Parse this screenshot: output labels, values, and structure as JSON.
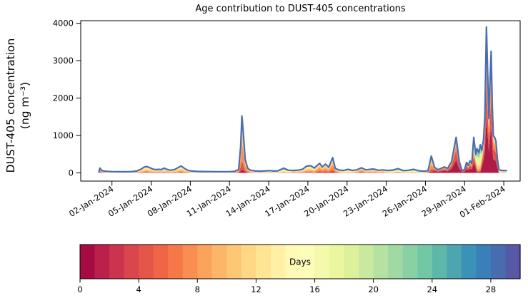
{
  "figure": {
    "background": "#ffffff",
    "axes_color": "#000000",
    "text_color": "#000000"
  },
  "chart_data": {
    "type": "area",
    "title": "Age contribution to DUST-405 concentrations",
    "ylabel_line1": "DUST-405 concentration",
    "ylabel_line2": "(ng m⁻³)",
    "xlabel": "",
    "yticks": [
      0,
      1000,
      2000,
      3000,
      4000
    ],
    "ylim": [
      0,
      4250
    ],
    "x_axis": {
      "tick_labels": [
        "02-Jan-2024",
        "05-Jan-2024",
        "08-Jan-2024",
        "11-Jan-2024",
        "14-Jan-2024",
        "17-Jan-2024",
        "20-Jan-2024",
        "23-Jan-2024",
        "26-Jan-2024",
        "29-Jan-2024",
        "01-Feb-2024"
      ],
      "tick_day_offsets": [
        1,
        4,
        7,
        10,
        13,
        16,
        19,
        22,
        25,
        28,
        31
      ],
      "day_offset_reference": "0 = 01-Jan-2024 00:00",
      "xlim_day_offsets": [
        -1.4,
        32.3
      ]
    },
    "stacking_note": "total concentration decomposed into age bands, youngest (red) at bottom to oldest (blue) at top, Spectral colormap",
    "total_line_color": "#4a6db1",
    "bands": [
      {
        "age_days": "0-2",
        "color": "#b01a47"
      },
      {
        "age_days": "2-5",
        "color": "#e05749"
      },
      {
        "age_days": "5-9",
        "color": "#f99153"
      },
      {
        "age_days": "9-13",
        "color": "#fdc878"
      },
      {
        "age_days": "13-17",
        "color": "#fef0a6"
      },
      {
        "age_days": "17-21",
        "color": "#e2f49c"
      },
      {
        "age_days": "21-25",
        "color": "#94d4a4"
      },
      {
        "age_days": "25-30",
        "color": "#4a9bb4"
      }
    ],
    "mix_names": [
      "aged",
      "yellow",
      "orange",
      "green",
      "fresh",
      "fresh2",
      "mega"
    ],
    "mix_profiles": {
      "aged": [
        0.02,
        0.04,
        0.09,
        0.17,
        0.25,
        0.18,
        0.11,
        0.14
      ],
      "yellow": [
        0.03,
        0.08,
        0.18,
        0.3,
        0.24,
        0.08,
        0.04,
        0.05
      ],
      "orange": [
        0.06,
        0.15,
        0.31,
        0.26,
        0.11,
        0.04,
        0.03,
        0.04
      ],
      "green": [
        0.03,
        0.05,
        0.09,
        0.13,
        0.19,
        0.22,
        0.17,
        0.12
      ],
      "fresh": [
        0.36,
        0.28,
        0.16,
        0.08,
        0.04,
        0.03,
        0.02,
        0.03
      ],
      "fresh2": [
        0.28,
        0.18,
        0.12,
        0.08,
        0.08,
        0.09,
        0.08,
        0.09
      ],
      "mega": [
        0.38,
        0.22,
        0.14,
        0.07,
        0.04,
        0.03,
        0.03,
        0.09
      ]
    },
    "points_schema": [
      "day_offset",
      "total_ng_m3",
      "mix_index"
    ],
    "points": [
      [
        0.0,
        25,
        2
      ],
      [
        0.08,
        130,
        2
      ],
      [
        0.2,
        70,
        2
      ],
      [
        0.35,
        50,
        1
      ],
      [
        0.6,
        42,
        0
      ],
      [
        1.0,
        35,
        0
      ],
      [
        1.5,
        32,
        0
      ],
      [
        2.0,
        30,
        0
      ],
      [
        2.5,
        35,
        0
      ],
      [
        2.9,
        50,
        1
      ],
      [
        3.2,
        95,
        1
      ],
      [
        3.45,
        150,
        1
      ],
      [
        3.64,
        172,
        1
      ],
      [
        3.9,
        140,
        1
      ],
      [
        4.15,
        100,
        1
      ],
      [
        4.4,
        85,
        1
      ],
      [
        4.56,
        95,
        1
      ],
      [
        4.75,
        85,
        1
      ],
      [
        5.0,
        125,
        1
      ],
      [
        5.25,
        90,
        1
      ],
      [
        5.5,
        70,
        1
      ],
      [
        5.8,
        90,
        1
      ],
      [
        6.05,
        140,
        1
      ],
      [
        6.3,
        185,
        1
      ],
      [
        6.55,
        120,
        1
      ],
      [
        6.8,
        70,
        1
      ],
      [
        7.1,
        50,
        0
      ],
      [
        7.5,
        40,
        0
      ],
      [
        8.0,
        36,
        0
      ],
      [
        8.5,
        34,
        0
      ],
      [
        9.0,
        33,
        0
      ],
      [
        9.5,
        32,
        0
      ],
      [
        10.0,
        33,
        0
      ],
      [
        10.4,
        40,
        1
      ],
      [
        10.7,
        90,
        2
      ],
      [
        10.85,
        700,
        2
      ],
      [
        10.95,
        1520,
        2
      ],
      [
        11.05,
        1100,
        2
      ],
      [
        11.2,
        350,
        2
      ],
      [
        11.4,
        120,
        2
      ],
      [
        11.6,
        70,
        1
      ],
      [
        12.0,
        50,
        0
      ],
      [
        12.4,
        45,
        0
      ],
      [
        12.8,
        55,
        0
      ],
      [
        13.1,
        60,
        0
      ],
      [
        13.4,
        50,
        0
      ],
      [
        13.7,
        55,
        0
      ],
      [
        14.15,
        125,
        0
      ],
      [
        14.5,
        70,
        0
      ],
      [
        14.9,
        65,
        1
      ],
      [
        15.3,
        75,
        1
      ],
      [
        15.6,
        100,
        1
      ],
      [
        15.9,
        180,
        1
      ],
      [
        16.2,
        195,
        1
      ],
      [
        16.5,
        130,
        1
      ],
      [
        16.9,
        255,
        2
      ],
      [
        17.1,
        160,
        2
      ],
      [
        17.35,
        235,
        2
      ],
      [
        17.6,
        150,
        2
      ],
      [
        17.9,
        410,
        2
      ],
      [
        18.1,
        120,
        2
      ],
      [
        18.4,
        75,
        1
      ],
      [
        18.75,
        65,
        0
      ],
      [
        19.07,
        95,
        0
      ],
      [
        19.4,
        65,
        0
      ],
      [
        19.75,
        80,
        1
      ],
      [
        20.1,
        135,
        2
      ],
      [
        20.45,
        80,
        1
      ],
      [
        21.0,
        105,
        1
      ],
      [
        21.4,
        70,
        1
      ],
      [
        21.75,
        80,
        1
      ],
      [
        22.1,
        65,
        0
      ],
      [
        22.5,
        75,
        3
      ],
      [
        22.9,
        115,
        3
      ],
      [
        23.3,
        60,
        3
      ],
      [
        23.7,
        70,
        3
      ],
      [
        24.1,
        95,
        3
      ],
      [
        24.5,
        55,
        0
      ],
      [
        24.9,
        45,
        0
      ],
      [
        25.2,
        60,
        2
      ],
      [
        25.45,
        450,
        2
      ],
      [
        25.7,
        150,
        4
      ],
      [
        25.95,
        85,
        4
      ],
      [
        26.2,
        120,
        4
      ],
      [
        26.45,
        160,
        4
      ],
      [
        26.7,
        120,
        4
      ],
      [
        27.0,
        300,
        4
      ],
      [
        27.35,
        950,
        4
      ],
      [
        27.6,
        300,
        4
      ],
      [
        27.8,
        60,
        4
      ],
      [
        28.0,
        90,
        4
      ],
      [
        28.15,
        280,
        4
      ],
      [
        28.28,
        200,
        4
      ],
      [
        28.42,
        320,
        4
      ],
      [
        28.55,
        250,
        4
      ],
      [
        28.7,
        950,
        5
      ],
      [
        28.85,
        500,
        5
      ],
      [
        28.95,
        650,
        3
      ],
      [
        29.1,
        550,
        3
      ],
      [
        29.2,
        750,
        3
      ],
      [
        29.32,
        600,
        5
      ],
      [
        29.45,
        900,
        6
      ],
      [
        29.55,
        1500,
        6
      ],
      [
        29.67,
        3900,
        6
      ],
      [
        29.78,
        2500,
        6
      ],
      [
        29.86,
        1450,
        6
      ],
      [
        29.95,
        2500,
        6
      ],
      [
        30.03,
        3250,
        6
      ],
      [
        30.12,
        1800,
        6
      ],
      [
        30.2,
        1000,
        4
      ],
      [
        30.3,
        950,
        4
      ],
      [
        30.4,
        850,
        4
      ],
      [
        30.5,
        400,
        4
      ],
      [
        30.62,
        90,
        0
      ],
      [
        30.8,
        65,
        0
      ],
      [
        31.0,
        65,
        0
      ],
      [
        31.2,
        60,
        0
      ]
    ],
    "colorbar": {
      "label": "Days",
      "range": [
        0,
        30
      ],
      "ticks": [
        0,
        4,
        8,
        12,
        16,
        20,
        24,
        28
      ],
      "segments_per_day": 1,
      "segment_colors": [
        "#a70b44",
        "#ba2049",
        "#cc344d",
        "#da464d",
        "#e55649",
        "#ef6545",
        "#f67848",
        "#f98e52",
        "#fba35c",
        "#fdb668",
        "#fec776",
        "#fed884",
        "#fee594",
        "#fff0a5",
        "#fffab6",
        "#fbfdb9",
        "#f3faac",
        "#eaf79f",
        "#dcf19a",
        "#c9e99e",
        "#b5e1a2",
        "#a0d9a4",
        "#89d0a5",
        "#72c7a5",
        "#5db8a9",
        "#4ca5b1",
        "#3b92b9",
        "#397fb8",
        "#486cb0",
        "#5759a7"
      ]
    }
  }
}
